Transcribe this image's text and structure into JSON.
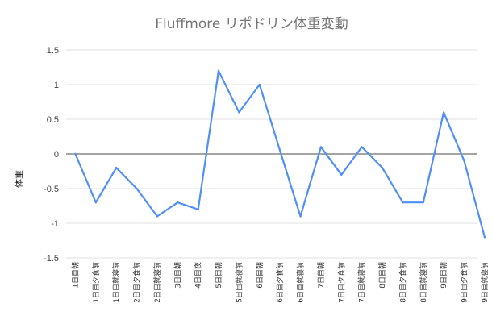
{
  "chart_data": {
    "type": "line",
    "title": "Fluffmore リポドリン体重変動",
    "xlabel": "",
    "ylabel": "体重",
    "ylim": [
      -1.5,
      1.5
    ],
    "yticks": [
      "1.5",
      "1",
      "0.5",
      "0",
      "-0.5",
      "-1",
      "-1.5"
    ],
    "grid": true,
    "legend": "none",
    "line_color": "#4f8ff7",
    "categories": [
      "1日目朝",
      "1日目夕食前",
      "1日目就寝前",
      "2日目夕食前",
      "2日目就寝前",
      "3日目朝",
      "4日目夜",
      "5日目朝",
      "5日目就寝前",
      "6日目朝",
      "6日目夕食前",
      "6日目就寝前",
      "7日目朝",
      "7日目夕食前",
      "7日目就寝前",
      "8日目朝",
      "8日目夕食前",
      "8日目就寝前",
      "9日目朝",
      "9日目夕食前",
      "9日目就寝前"
    ],
    "series": [
      {
        "values": [
          0,
          -0.7,
          -0.2,
          -0.5,
          -0.9,
          -0.7,
          -0.8,
          1.2,
          0.6,
          1.0,
          0.05,
          -0.9,
          0.1,
          -0.3,
          0.1,
          -0.2,
          -0.7,
          -0.7,
          0.6,
          -0.1,
          -1.2
        ]
      }
    ]
  }
}
